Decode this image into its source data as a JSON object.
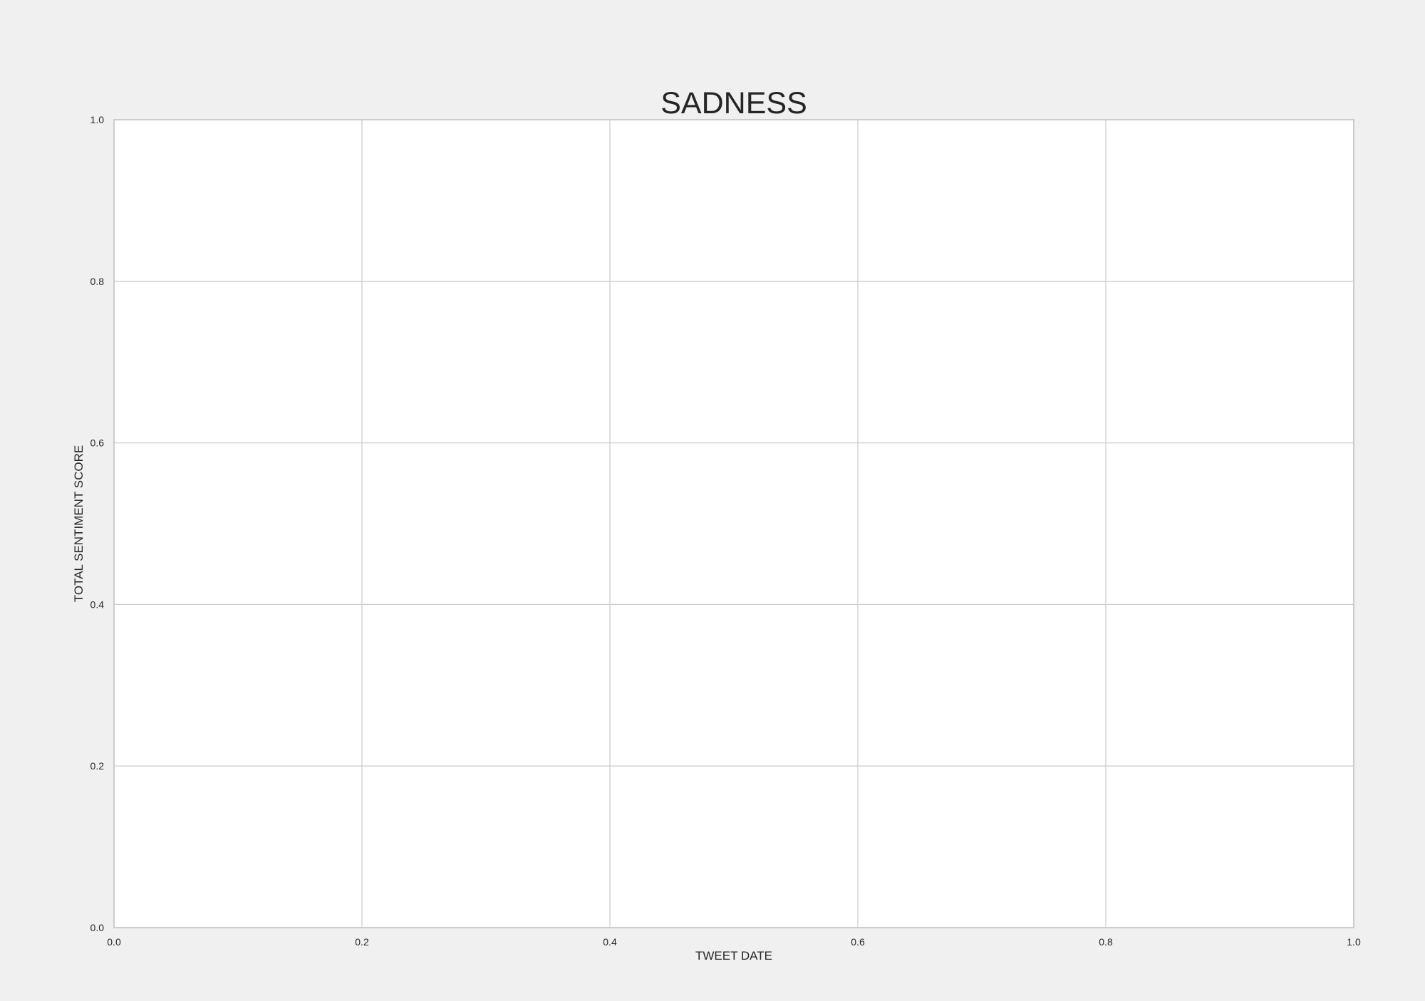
{
  "chart_data": {
    "type": "line",
    "title": "SADNESS",
    "xlabel": "TWEET DATE",
    "ylabel": "TOTAL SENTIMENT SCORE",
    "xlim": [
      0.0,
      1.0
    ],
    "ylim": [
      0.0,
      1.0
    ],
    "x_ticks": [
      0.0,
      0.2,
      0.4,
      0.6,
      0.8,
      1.0
    ],
    "y_ticks": [
      0.0,
      0.2,
      0.4,
      0.6,
      0.8,
      1.0
    ],
    "x_tick_labels": [
      "0.0",
      "0.2",
      "0.4",
      "0.6",
      "0.8",
      "1.0"
    ],
    "y_tick_labels": [
      "0.0",
      "0.2",
      "0.4",
      "0.6",
      "0.8",
      "1.0"
    ],
    "grid": true,
    "series": []
  },
  "colors": {
    "figure_background": "#f0f0f0",
    "plot_background": "#ffffff",
    "grid": "#cccccc",
    "text": "#262626"
  }
}
